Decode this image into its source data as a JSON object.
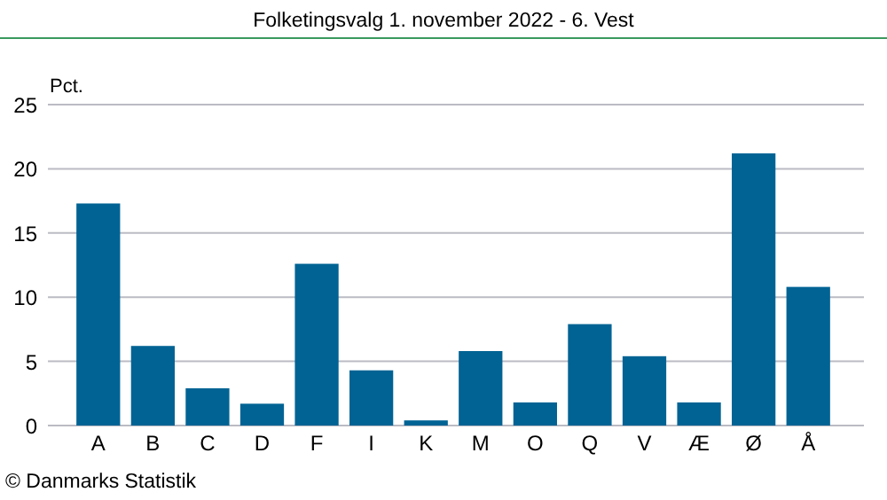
{
  "chart_data": {
    "type": "bar",
    "title": "Folketingsvalg 1. november 2022 - 6. Vest",
    "ylabel": "Pct.",
    "categories": [
      "A",
      "B",
      "C",
      "D",
      "F",
      "I",
      "K",
      "M",
      "O",
      "Q",
      "V",
      "Æ",
      "Ø",
      "Å"
    ],
    "values": [
      17.3,
      6.2,
      2.9,
      1.7,
      12.6,
      4.3,
      0.4,
      5.8,
      1.8,
      7.9,
      5.4,
      1.8,
      21.2,
      10.8
    ],
    "color": "#006394",
    "ylim": [
      0,
      25
    ],
    "yticks": [
      0,
      5,
      10,
      15,
      20,
      25
    ],
    "grid": "y",
    "annotations": [
      "© Danmarks Statistik"
    ]
  }
}
